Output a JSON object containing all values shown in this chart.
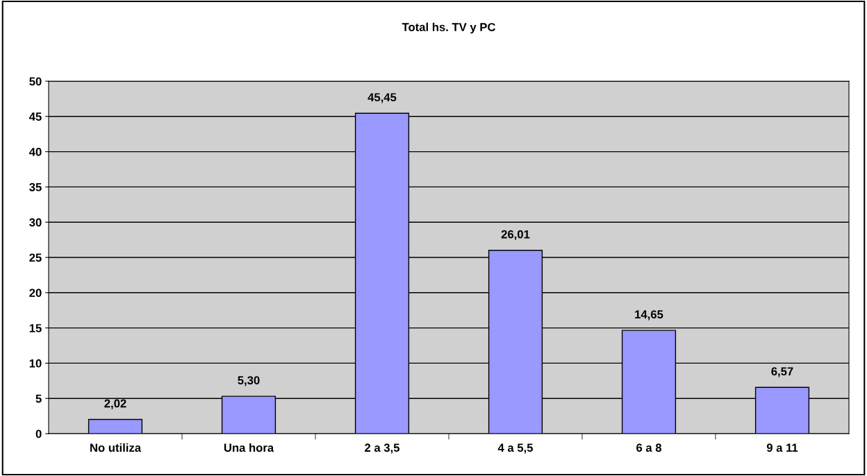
{
  "chart_data": {
    "type": "bar",
    "title": "Total hs. TV y PC",
    "categories": [
      "No utiliza",
      "Una hora",
      "2 a 3,5",
      "4 a 5,5",
      "6 a 8",
      "9 a 11"
    ],
    "values": [
      2.02,
      5.3,
      45.45,
      26.01,
      14.65,
      6.57
    ],
    "value_labels": [
      "2,02",
      "5,30",
      "45,45",
      "26,01",
      "14,65",
      "6,57"
    ],
    "color": "#9999ff",
    "ylim": [
      0,
      50
    ],
    "yticks": [
      0,
      5,
      10,
      15,
      20,
      25,
      30,
      35,
      40,
      45,
      50
    ],
    "grid": "y",
    "legend": false
  }
}
